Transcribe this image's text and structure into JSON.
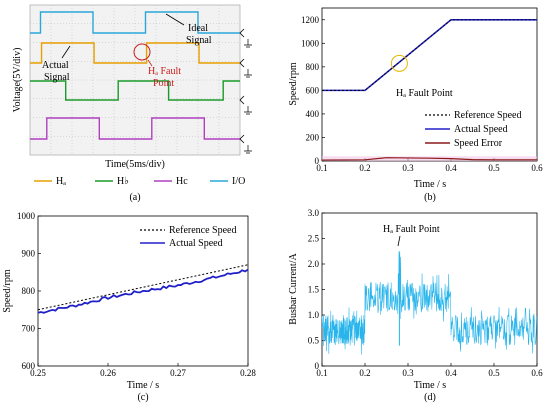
{
  "panels": {
    "a": {
      "label": "(a)",
      "ylabel": "Voltage(5V/div)",
      "xlabel": "Time(5ms/div)",
      "annotations": {
        "ideal": [
          "Ideal",
          "Signal"
        ],
        "actual": [
          "Actual",
          "Signal"
        ],
        "fault": [
          "Hₐ Fault",
          "Point"
        ]
      },
      "legend": [
        "Hₐ",
        "H♭",
        "Hc",
        "I/O"
      ],
      "colors": {
        "ha": "#e8a000",
        "hb": "#1a9a2a",
        "hc": "#b040c0",
        "io": "#2aa7d9",
        "bg": "#f2f2f2",
        "grid": "#bdbdbd",
        "fault": "#c81e1e"
      }
    },
    "b": {
      "label": "(b)",
      "annotation": "Hₐ Fault Point",
      "colors": {
        "reference": "#000000",
        "actual": "#2020c8",
        "error": "#8b1a1a",
        "fault_marker": "#e6b800"
      }
    },
    "c": {
      "label": "(c)",
      "colors": {
        "reference": "#000000",
        "actual": "#2020c8"
      }
    },
    "d": {
      "label": "(d)",
      "annotation": "Hₐ Fault Point",
      "colors": {
        "current": "#29b5ec"
      }
    }
  },
  "chart_data": [
    {
      "id": "a",
      "type": "line",
      "title": "",
      "xlabel": "Time(5ms/div)",
      "ylabel": "Voltage(5V/div)",
      "x_divisions": 10,
      "x_range": [
        0,
        10
      ],
      "series": [
        {
          "name": "Hₐ",
          "level_low": 0,
          "level_high": 1,
          "transitions": [
            0,
            0.5,
            2.8,
            3.1,
            5.3,
            5.6,
            7.8
          ],
          "start": 0
        },
        {
          "name": "H♭",
          "level_low": 0,
          "level_high": 1,
          "transitions": [
            1.7,
            4.2,
            6.6,
            9.2
          ],
          "start": 1
        },
        {
          "name": "Hc",
          "level_low": 0,
          "level_high": 1,
          "transitions": [
            0.8,
            3.3,
            5.8,
            8.3
          ],
          "start": 0
        },
        {
          "name": "I/O",
          "level_low": 0,
          "level_high": 1,
          "transitions": [
            0.5,
            3.0,
            5.5,
            8.0
          ],
          "start": 0
        }
      ],
      "grid": true
    },
    {
      "id": "b",
      "type": "line",
      "title": "",
      "xlabel": "Time / s",
      "ylabel": "Speed/rpm",
      "xlim": [
        0.1,
        0.6
      ],
      "ylim": [
        0,
        1300
      ],
      "xticks": [
        "0.1",
        "0.2",
        "0.3",
        "0.4",
        "0.5",
        "0.6"
      ],
      "yticks": [
        "0",
        "200",
        "400",
        "600",
        "800",
        "1000",
        "1200"
      ],
      "series": [
        {
          "name": "Reference Speed",
          "x": [
            0.1,
            0.2,
            0.4,
            0.6
          ],
          "y": [
            600,
            600,
            1200,
            1200
          ]
        },
        {
          "name": "Actual Speed",
          "x": [
            0.1,
            0.2,
            0.4,
            0.6
          ],
          "y": [
            600,
            600,
            1200,
            1200
          ]
        },
        {
          "name": "Speed Error",
          "x": [
            0.1,
            0.2,
            0.25,
            0.3,
            0.35,
            0.4,
            0.45,
            0.5,
            0.55,
            0.6
          ],
          "y": [
            8,
            10,
            28,
            26,
            24,
            20,
            12,
            10,
            10,
            10
          ]
        }
      ],
      "fault_point": {
        "x": 0.28,
        "y": 830
      },
      "legend": "bottom-right",
      "grid": false
    },
    {
      "id": "c",
      "type": "line",
      "title": "",
      "xlabel": "Time / s",
      "ylabel": "Speed/rpm",
      "xlim": [
        0.25,
        0.28
      ],
      "ylim": [
        600,
        1000
      ],
      "xticks": [
        "0.25",
        "0.26",
        "0.27",
        "0.28"
      ],
      "yticks": [
        "600",
        "700",
        "800",
        "900",
        "1000"
      ],
      "series": [
        {
          "name": "Reference Speed",
          "x": [
            0.25,
            0.28
          ],
          "y": [
            750,
            870
          ]
        },
        {
          "name": "Actual Speed",
          "x": [
            0.25,
            0.255,
            0.26,
            0.265,
            0.27,
            0.275,
            0.28
          ],
          "y": [
            742,
            760,
            782,
            800,
            815,
            835,
            857
          ]
        }
      ],
      "legend": "top-right",
      "grid": false
    },
    {
      "id": "d",
      "type": "line",
      "title": "",
      "xlabel": "Time / s",
      "ylabel": "Busbar Current/A",
      "xlim": [
        0.1,
        0.6
      ],
      "ylim": [
        0,
        3.0
      ],
      "xticks": [
        "0.1",
        "0.2",
        "0.3",
        "0.4",
        "0.5",
        "0.6"
      ],
      "yticks": [
        "0",
        "0.5",
        "1.0",
        "1.5",
        "2.0",
        "2.5",
        "3.0"
      ],
      "series": [
        {
          "name": "Busbar Current",
          "segments": [
            {
              "x0": 0.1,
              "x1": 0.2,
              "mean": 0.7,
              "noise": 0.3
            },
            {
              "x0": 0.2,
              "x1": 0.4,
              "mean": 1.35,
              "noise": 0.3
            },
            {
              "x0": 0.4,
              "x1": 0.6,
              "mean": 0.7,
              "noise": 0.3
            }
          ]
        }
      ],
      "fault_point": {
        "x": 0.28,
        "y": 2.2
      },
      "grid": false
    }
  ]
}
